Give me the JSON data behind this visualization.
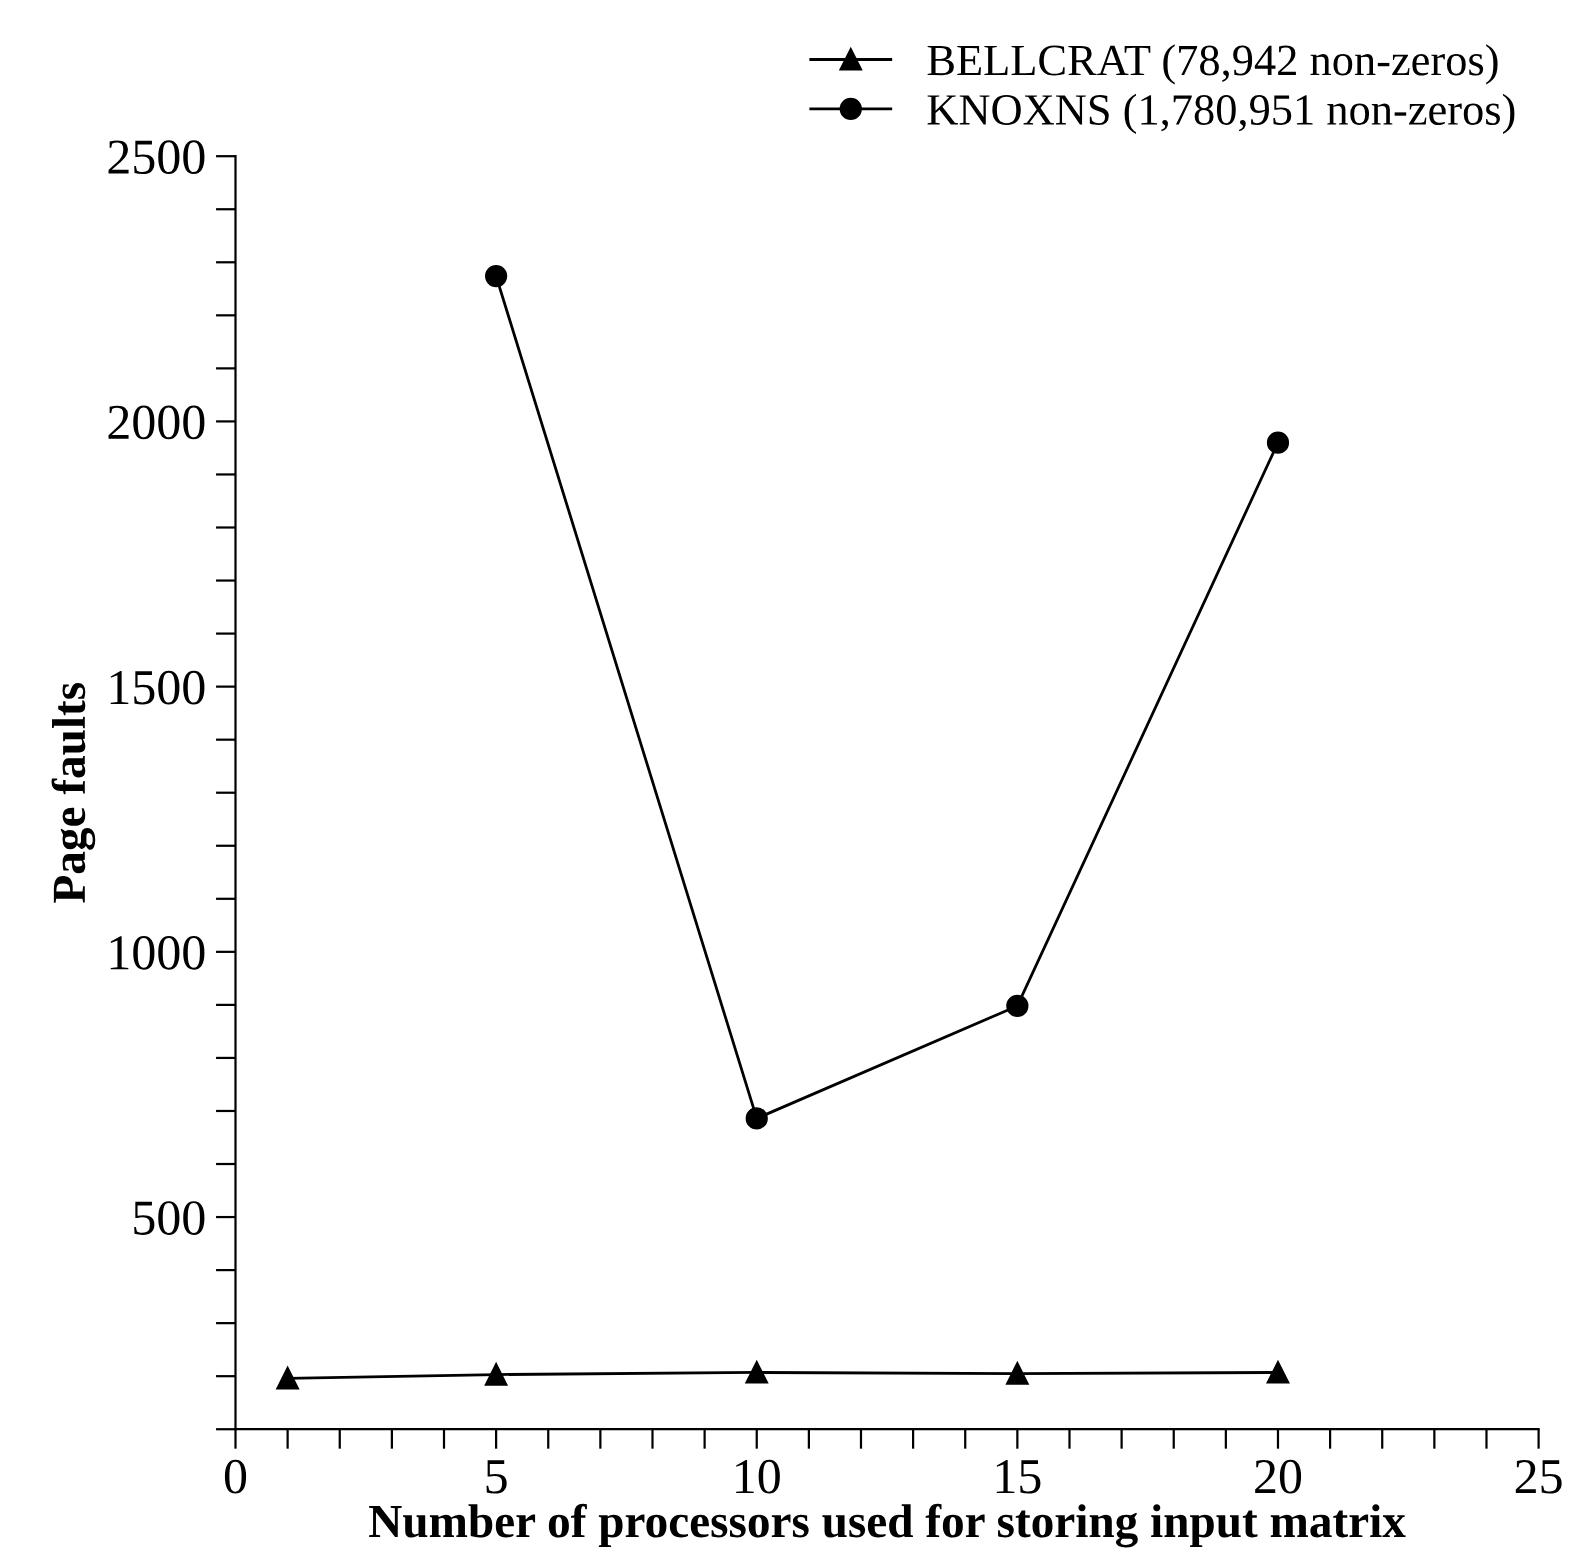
{
  "chart_data": {
    "type": "line",
    "xlabel": "Number of processors used for storing input matrix",
    "ylabel": "Page faults",
    "xlim": [
      0,
      25
    ],
    "ylim": [
      100,
      2500
    ],
    "xticks": [
      0,
      {
        "value": 1,
        "label": null
      },
      {
        "value": 2,
        "label": null
      },
      {
        "value": 3,
        "label": null
      },
      {
        "value": 4,
        "label": null
      },
      5,
      {
        "value": 6,
        "label": null
      },
      {
        "value": 7,
        "label": null
      },
      {
        "value": 8,
        "label": null
      },
      {
        "value": 9,
        "label": null
      },
      10,
      {
        "value": 11,
        "label": null
      },
      {
        "value": 12,
        "label": null
      },
      {
        "value": 13,
        "label": null
      },
      {
        "value": 14,
        "label": null
      },
      15,
      {
        "value": 16,
        "label": null
      },
      {
        "value": 17,
        "label": null
      },
      {
        "value": 18,
        "label": null
      },
      {
        "value": 19,
        "label": null
      },
      20,
      {
        "value": 21,
        "label": null
      },
      {
        "value": 22,
        "label": null
      },
      {
        "value": 23,
        "label": null
      },
      {
        "value": 24,
        "label": null
      },
      25
    ],
    "yticks": [
      {
        "value": 100,
        "label": null
      },
      {
        "value": 200,
        "label": null
      },
      {
        "value": 300,
        "label": null
      },
      {
        "value": 400,
        "label": null
      },
      500,
      {
        "value": 600,
        "label": null
      },
      {
        "value": 700,
        "label": null
      },
      {
        "value": 800,
        "label": null
      },
      {
        "value": 900,
        "label": null
      },
      1000,
      {
        "value": 1100,
        "label": null
      },
      {
        "value": 1200,
        "label": null
      },
      {
        "value": 1300,
        "label": null
      },
      {
        "value": 1400,
        "label": null
      },
      1500,
      {
        "value": 1600,
        "label": null
      },
      {
        "value": 1700,
        "label": null
      },
      {
        "value": 1800,
        "label": null
      },
      {
        "value": 1900,
        "label": null
      },
      2000,
      {
        "value": 2100,
        "label": null
      },
      {
        "value": 2200,
        "label": null
      },
      {
        "value": 2300,
        "label": null
      },
      {
        "value": 2400,
        "label": null
      },
      2500
    ],
    "grid": false,
    "legend": "top right",
    "line_style": "solid",
    "series": [
      {
        "name": "BELLCRAT (78,942 non-zeros)",
        "color": "#000000",
        "marker": "triangle",
        "x": [
          1,
          5,
          10,
          15,
          20
        ],
        "values": [
          196,
          203,
          207,
          205,
          207
        ]
      },
      {
        "name": "KNOXNS (1,780,951 non-zeros)",
        "color": "#000000",
        "marker": "circle",
        "x": [
          5,
          10,
          15,
          20
        ],
        "values": [
          2274,
          686,
          898,
          1960
        ]
      }
    ]
  }
}
